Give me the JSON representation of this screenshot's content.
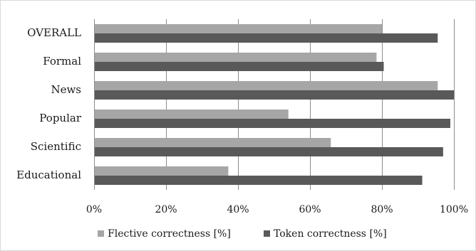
{
  "chart_data": {
    "type": "bar",
    "orientation": "horizontal",
    "categories": [
      "OVERALL",
      "Formal",
      "News",
      "Popular",
      "Scientific",
      "Educational"
    ],
    "series": [
      {
        "name": "Flective correctness [%]",
        "values": [
          80,
          78.5,
          95.5,
          54,
          65.8,
          37.3
        ]
      },
      {
        "name": "Token correctness [%]",
        "values": [
          95.5,
          80.5,
          100,
          99,
          97,
          91.2
        ]
      }
    ],
    "xlim": [
      0,
      100
    ],
    "x_ticks": [
      0,
      20,
      40,
      60,
      80,
      100
    ],
    "x_tick_labels": [
      "0%",
      "20%",
      "40%",
      "60%",
      "80%",
      "100%"
    ],
    "grid": true,
    "legend_position": "bottom",
    "colors": [
      "#a6a6a6",
      "#595959"
    ]
  }
}
